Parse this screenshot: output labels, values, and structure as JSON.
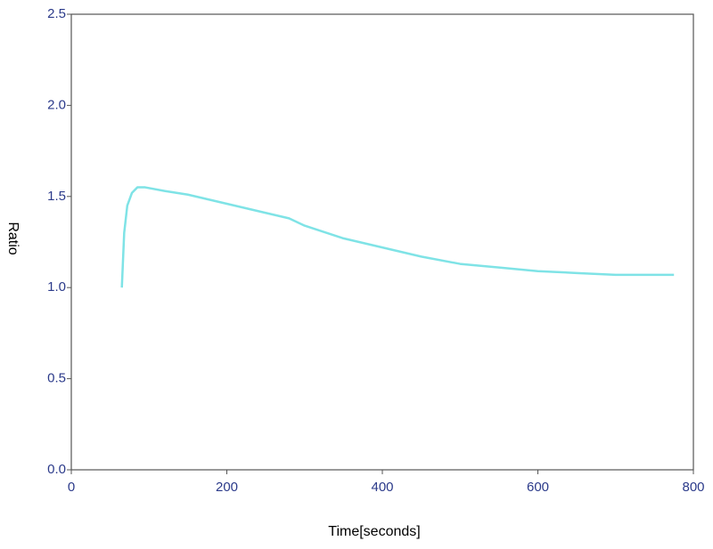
{
  "chart_data": {
    "type": "line",
    "xlabel": "Time[seconds]",
    "ylabel": "Ratio",
    "x": [
      65,
      68,
      72,
      78,
      85,
      95,
      120,
      150,
      200,
      250,
      280,
      300,
      350,
      400,
      450,
      500,
      550,
      600,
      650,
      700,
      740,
      775
    ],
    "values": [
      1.0,
      1.3,
      1.45,
      1.52,
      1.55,
      1.55,
      1.53,
      1.51,
      1.46,
      1.41,
      1.38,
      1.34,
      1.27,
      1.22,
      1.17,
      1.13,
      1.11,
      1.09,
      1.08,
      1.07,
      1.07,
      1.07
    ],
    "color": "#7fe3e6",
    "xlim": [
      0,
      800
    ],
    "ylim": [
      0,
      2.5
    ],
    "xticks": [
      0,
      200,
      400,
      600,
      800
    ],
    "yticks": [
      {
        "value": 0,
        "label": "0.0"
      },
      0.5,
      {
        "value": 1,
        "label": "1.0"
      },
      1.5,
      {
        "value": 2,
        "label": "2.0"
      },
      2.5
    ],
    "grid": false
  }
}
